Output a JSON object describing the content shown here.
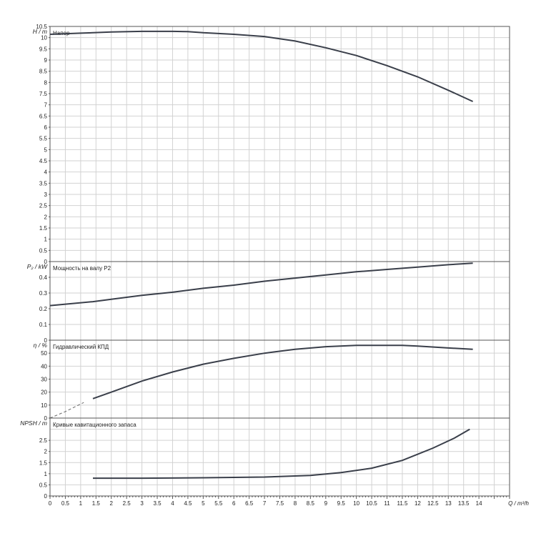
{
  "chart_data": [
    {
      "type": "line",
      "title": "Напор",
      "ylabel": "H / m",
      "ylim": [
        0,
        10.5
      ],
      "ytick_step": 0.5,
      "yticks": [
        "0",
        "0.5",
        "1",
        "1.5",
        "2",
        "2.5",
        "3",
        "3.5",
        "4",
        "4.5",
        "5",
        "5.5",
        "6",
        "6.5",
        "7",
        "7.5",
        "8",
        "8.5",
        "9",
        "9.5",
        "10",
        "10.5"
      ],
      "series": [
        {
          "x": [
            0,
            1,
            2,
            3,
            4,
            4.5,
            5,
            6,
            7,
            8,
            9,
            10,
            11,
            12,
            13,
            13.8
          ],
          "y": [
            10.15,
            10.2,
            10.25,
            10.28,
            10.28,
            10.27,
            10.22,
            10.15,
            10.05,
            9.85,
            9.55,
            9.2,
            8.75,
            8.25,
            7.65,
            7.15
          ]
        }
      ]
    },
    {
      "type": "line",
      "title": "Мощность на валу P2",
      "ylabel": "P₂ / kW",
      "ylim": [
        0,
        0.5
      ],
      "ytick_step": 0.1,
      "yticks": [
        "0",
        "0.1",
        "0.2",
        "0.3",
        "0.4"
      ],
      "series": [
        {
          "x": [
            0,
            1.4,
            2,
            3,
            4,
            5,
            6,
            7,
            8,
            9,
            10,
            11,
            12,
            13,
            13.8
          ],
          "y": [
            0.22,
            0.245,
            0.26,
            0.285,
            0.305,
            0.33,
            0.35,
            0.375,
            0.395,
            0.415,
            0.435,
            0.45,
            0.465,
            0.48,
            0.49
          ]
        }
      ]
    },
    {
      "type": "line",
      "title": "Гидравлический КПД",
      "ylabel": "η / %",
      "ylim": [
        0,
        60
      ],
      "ytick_step": 10,
      "yticks": [
        "0",
        "10",
        "20",
        "30",
        "40",
        "50"
      ],
      "dashed_series": [
        {
          "x": [
            0,
            0.5,
            1.1
          ],
          "y": [
            0,
            5,
            12
          ]
        }
      ],
      "series": [
        {
          "x": [
            1.4,
            2,
            3,
            4,
            5,
            6,
            7,
            8,
            9,
            10,
            11,
            11.5,
            12,
            13,
            13.8
          ],
          "y": [
            15,
            20,
            28.5,
            35.5,
            41.5,
            46,
            50,
            53,
            55,
            56,
            56,
            56,
            55.5,
            54,
            53
          ]
        }
      ]
    },
    {
      "type": "line",
      "title": "Кривые кавитационного запаса",
      "ylabel": "NPSH / m",
      "ylim": [
        0,
        3.5
      ],
      "ytick_step": 0.5,
      "yticks": [
        "0",
        "0.5",
        "1",
        "1.5",
        "2",
        "2.5"
      ],
      "series": [
        {
          "x": [
            1.4,
            3,
            5,
            7,
            8.5,
            9.5,
            10.5,
            11.5,
            12.5,
            13.2,
            13.7
          ],
          "y": [
            0.8,
            0.8,
            0.82,
            0.85,
            0.92,
            1.05,
            1.25,
            1.6,
            2.15,
            2.6,
            3.0
          ]
        }
      ]
    }
  ],
  "x_axis": {
    "label": "Q / m³/h",
    "xlim": [
      0,
      15
    ],
    "ticks": [
      "0",
      "0.5",
      "1",
      "1.5",
      "2",
      "2.5",
      "3",
      "3.5",
      "4",
      "4.5",
      "5",
      "5.5",
      "6",
      "6.5",
      "7",
      "7.5",
      "8",
      "8.5",
      "9",
      "9.5",
      "10",
      "10.5",
      "11",
      "11.5",
      "12",
      "12.5",
      "13",
      "13.5",
      "14"
    ]
  }
}
